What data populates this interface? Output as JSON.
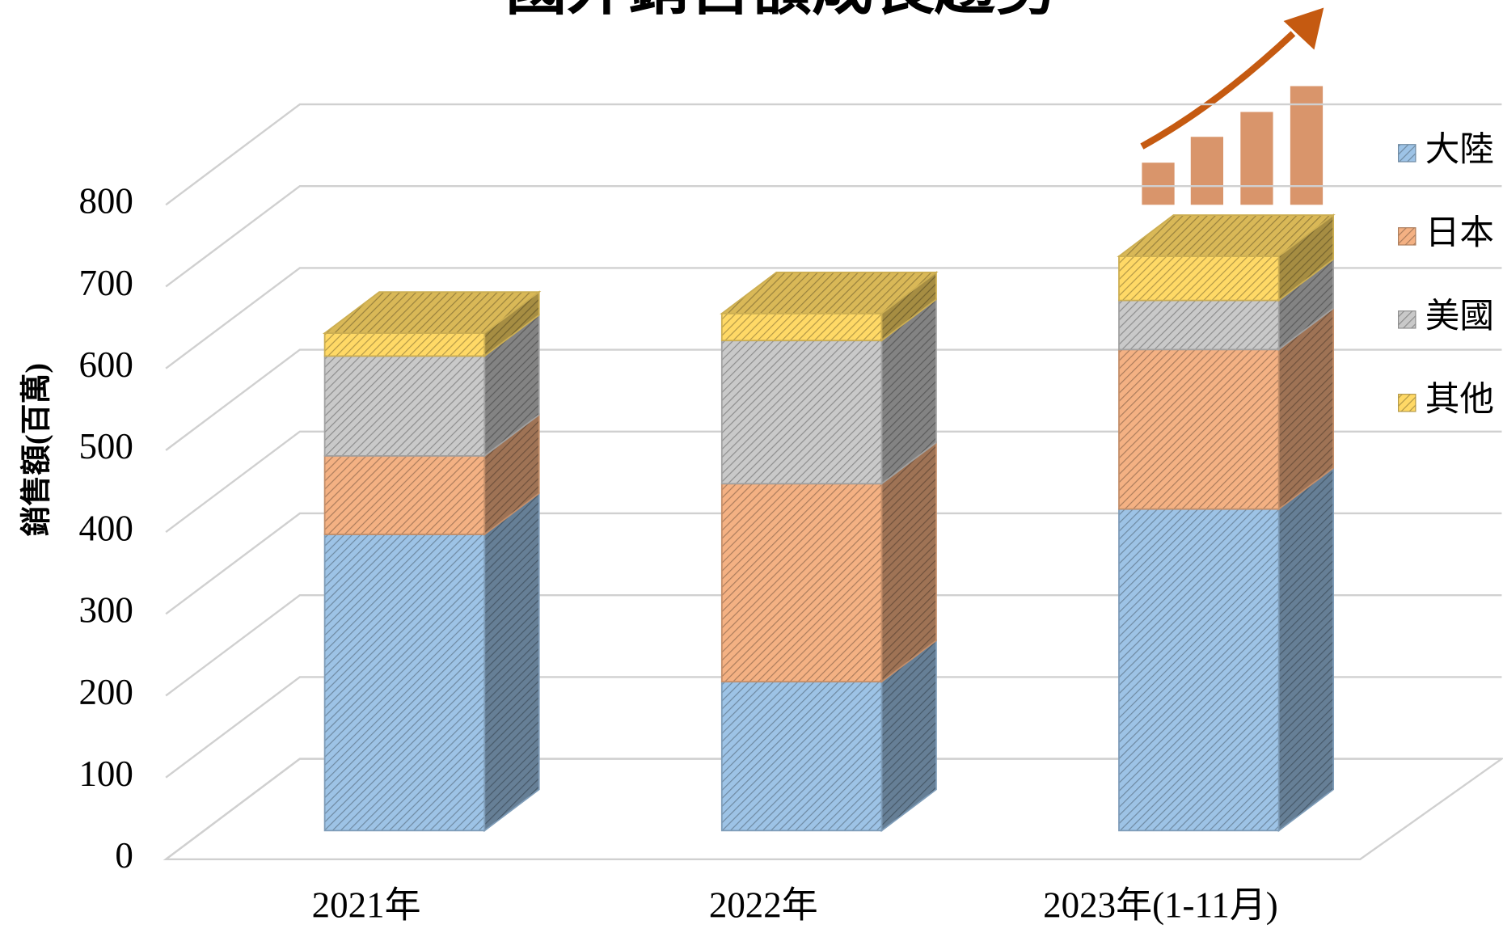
{
  "chart_data": {
    "type": "bar3d_stacked",
    "title": "國外銷售額成長趨勢",
    "y_label": "銷售額(百萬)",
    "categories": [
      "2021年",
      "2022年",
      "2023年(1-11月)"
    ],
    "series": [
      {
        "name": "大陸",
        "color": "#9dc3e6",
        "values": [
          362,
          182,
          393
        ]
      },
      {
        "name": "日本",
        "color": "#f4b183",
        "values": [
          96,
          242,
          195
        ]
      },
      {
        "name": "美國",
        "color": "#c9c9c9",
        "values": [
          122,
          175,
          60
        ]
      },
      {
        "name": "其他",
        "color": "#ffd966",
        "values": [
          28,
          33,
          54
        ]
      }
    ],
    "ylim": [
      0,
      800
    ],
    "yticks": [
      0,
      100,
      200,
      300,
      400,
      500,
      600,
      700,
      800
    ],
    "grid": true,
    "legend": "right"
  }
}
